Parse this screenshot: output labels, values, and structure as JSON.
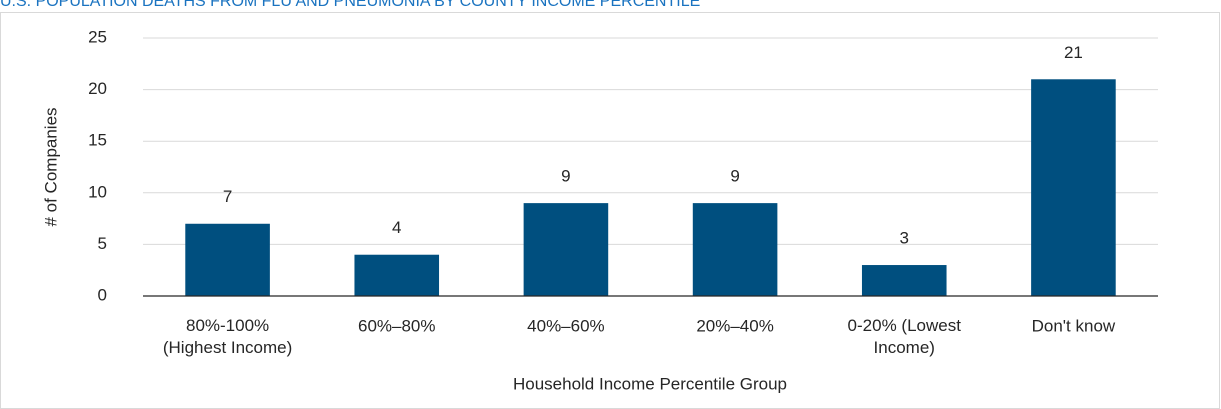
{
  "chart_data": {
    "type": "bar",
    "title": "U.S. POPULATION DEATHS FROM FLU AND PNEUMONIA BY COUNTY INCOME PERCENTILE",
    "x_label": "Household Income Percentile Group",
    "y_label": "# of Companies",
    "categories": [
      "80%-100%\n(Highest Income)",
      "60%–80%",
      "40%–60%",
      "20%–40%",
      "0-20% (Lowest\nIncome)",
      "Don't know"
    ],
    "values": [
      7,
      4,
      9,
      9,
      3,
      21
    ],
    "color": "#004f7f",
    "ylim": [
      0,
      25
    ],
    "yticks": [
      0,
      5,
      10,
      15,
      20,
      25
    ],
    "grid": true
  }
}
